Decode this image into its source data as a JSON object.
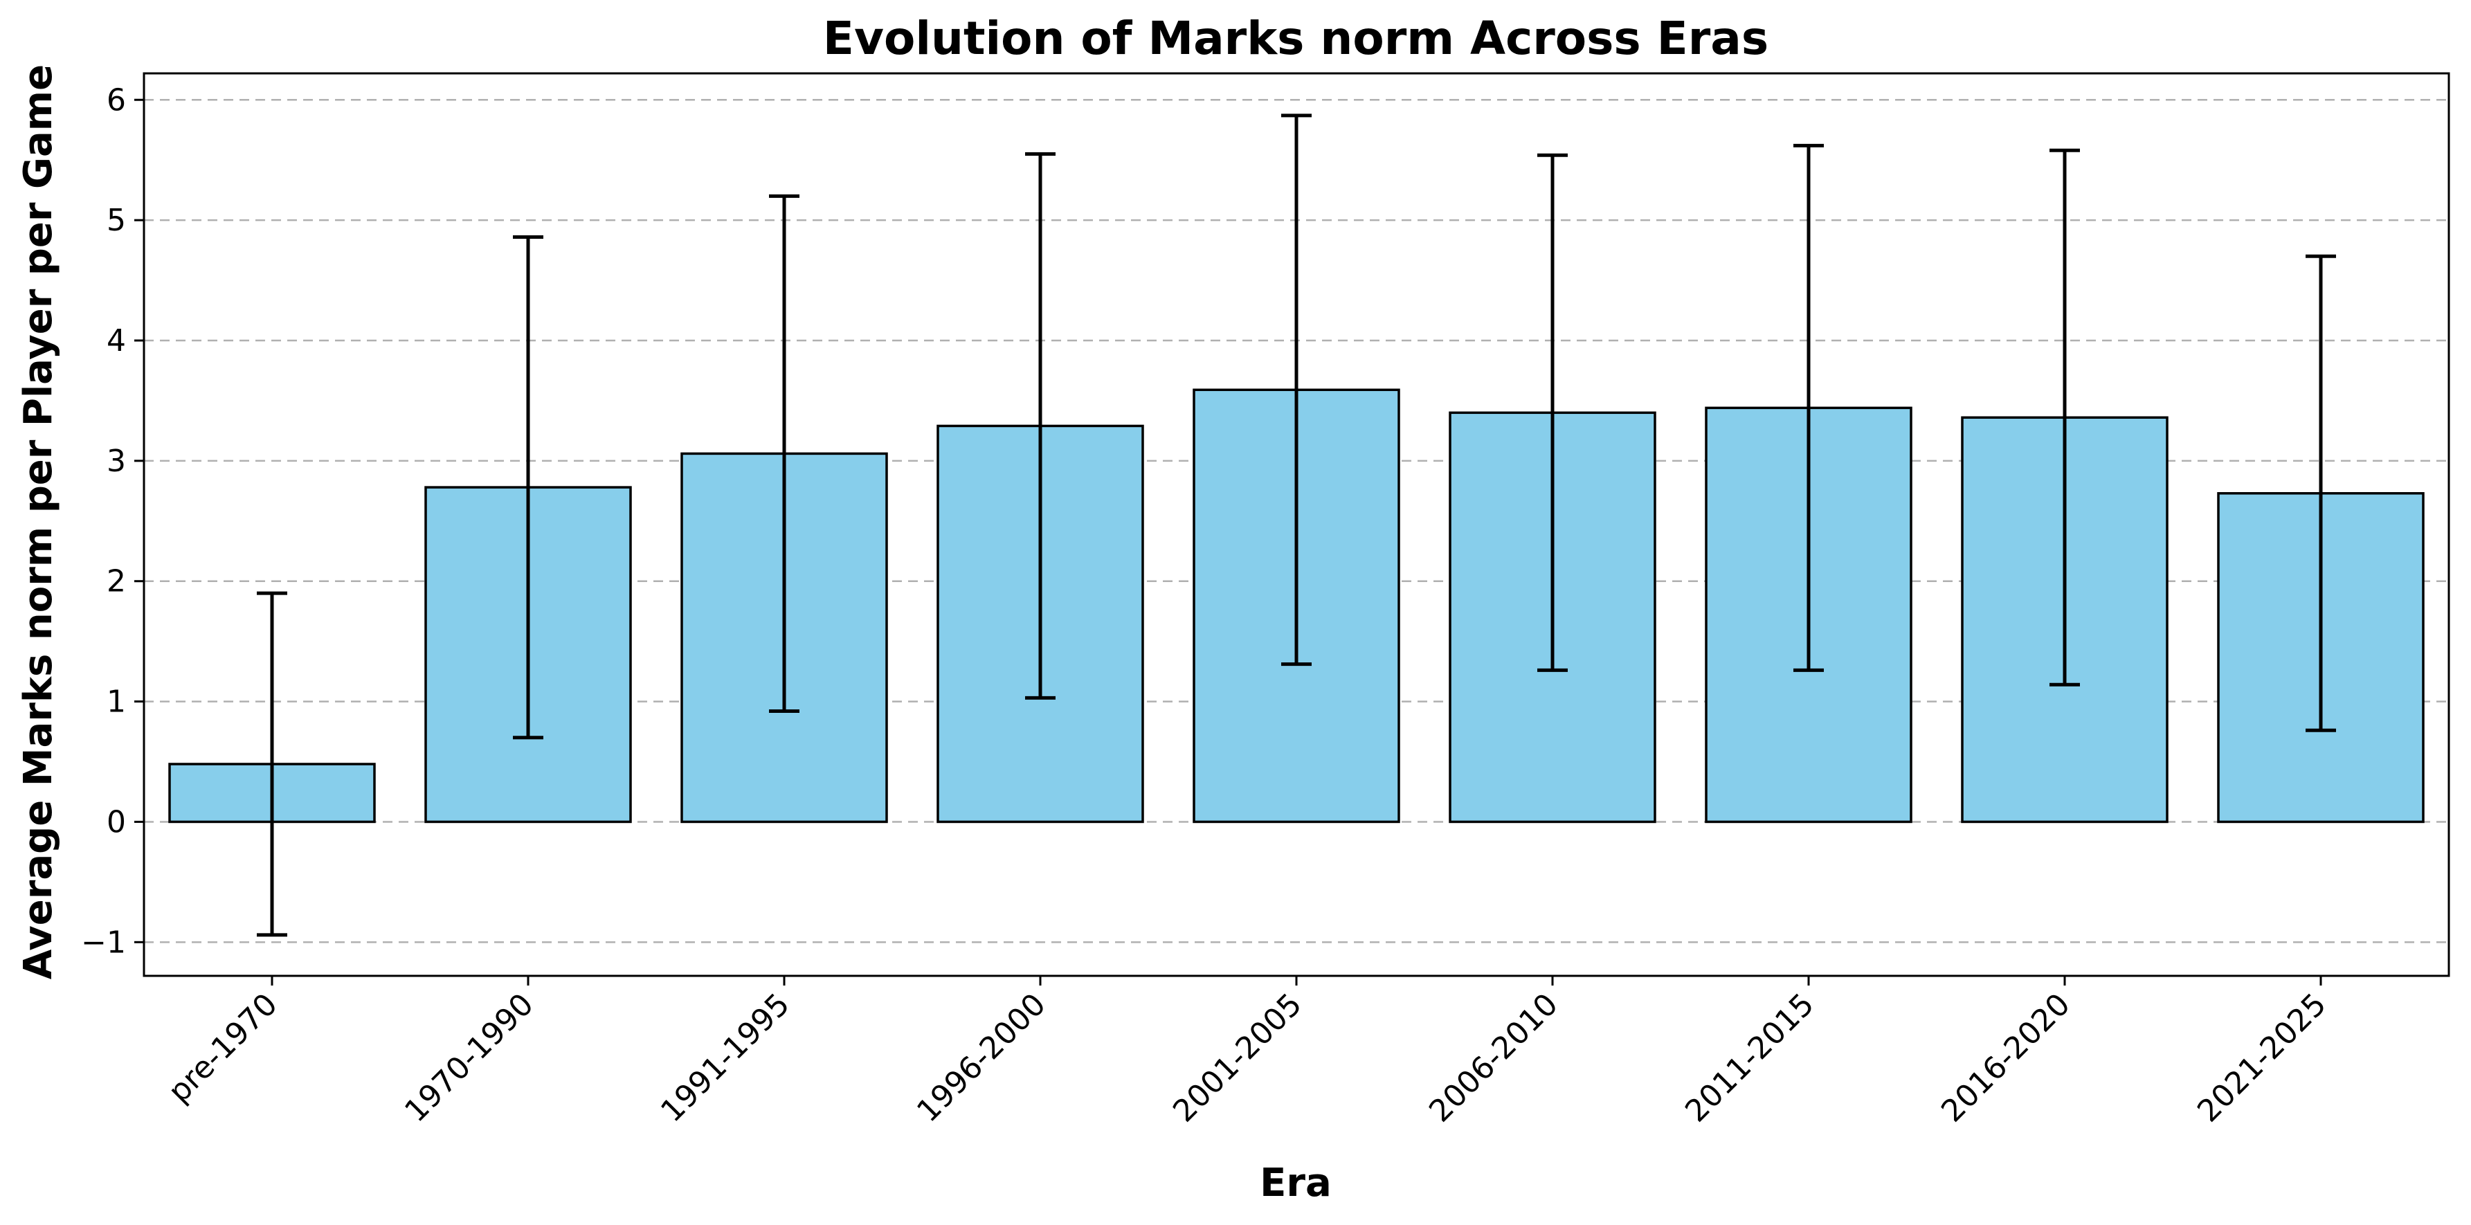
{
  "chart_data": {
    "type": "bar",
    "title": "Evolution of Marks norm Across Eras",
    "xlabel": "Era",
    "ylabel": "Average Marks norm per Player per Game",
    "categories": [
      "pre-1970",
      "1970-1990",
      "1991-1995",
      "1996-2000",
      "2001-2005",
      "2006-2010",
      "2011-2015",
      "2016-2020",
      "2021-2025"
    ],
    "values": [
      0.48,
      2.78,
      3.06,
      3.29,
      3.59,
      3.4,
      3.44,
      3.36,
      2.73
    ],
    "error": [
      1.42,
      2.08,
      2.14,
      2.26,
      2.28,
      2.14,
      2.18,
      2.22,
      1.97
    ],
    "ylim": [
      -1.28,
      6.22
    ],
    "yticks": [
      -1,
      0,
      1,
      2,
      3,
      4,
      5,
      6
    ],
    "ytick_labels": [
      "−1",
      "0",
      "1",
      "2",
      "3",
      "4",
      "5",
      "6"
    ],
    "grid": "y-dashed",
    "bar_color": "#87CEEB",
    "edge_color": "#000000"
  }
}
